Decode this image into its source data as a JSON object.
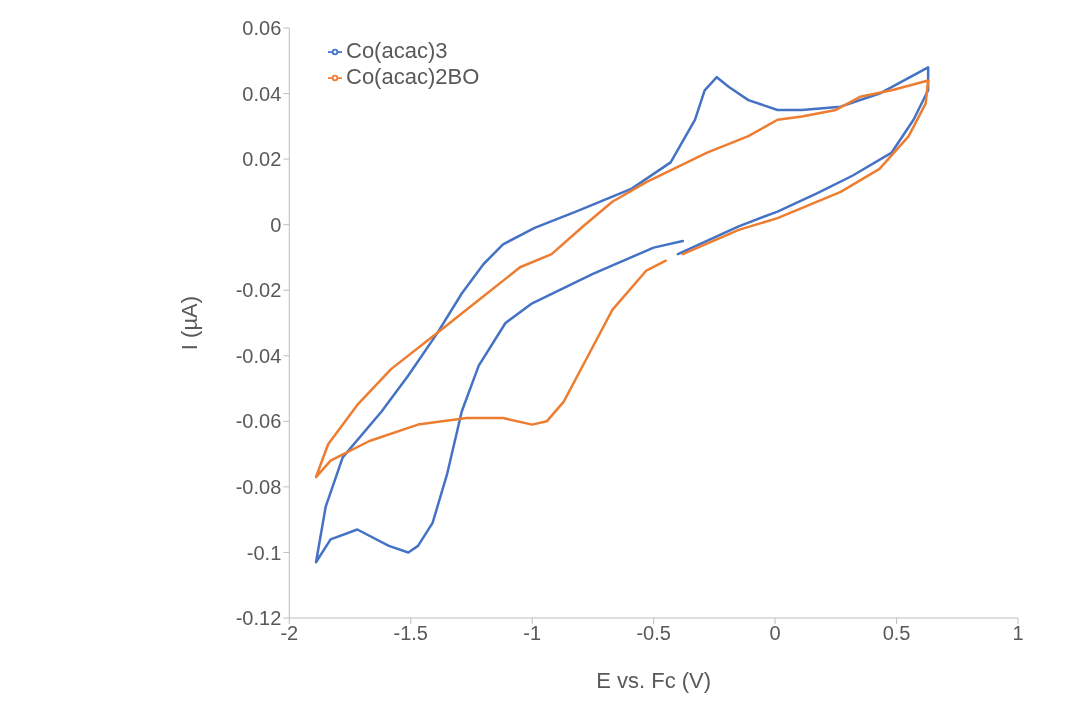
{
  "chart_data": {
    "type": "line",
    "xlabel": "E vs. Fc (V)",
    "ylabel": "I (µA)",
    "xlim": [
      -2,
      1
    ],
    "xticks": [
      -2,
      -1.5,
      -1,
      -0.5,
      0,
      0.5,
      1
    ],
    "ylim": [
      -0.12,
      0.06
    ],
    "yticks": [
      -0.12,
      -0.1,
      -0.08,
      -0.06,
      -0.04,
      -0.02,
      0,
      0.02,
      0.04,
      0.06
    ],
    "grid": false,
    "legend": "top left",
    "marker": "none",
    "line_style": "solid",
    "series": [
      {
        "name": "Co(acac)3",
        "color": "#4472c4",
        "x": [
          -0.38,
          -0.5,
          -0.75,
          -1.0,
          -1.11,
          -1.22,
          -1.29,
          -1.35,
          -1.41,
          -1.47,
          -1.51,
          -1.59,
          -1.72,
          -1.83,
          -1.89,
          -1.85,
          -1.78,
          -1.62,
          -1.51,
          -1.39,
          -1.29,
          -1.2,
          -1.12,
          -0.99,
          -0.82,
          -0.59,
          -0.43,
          -0.33,
          -0.29,
          -0.24,
          -0.19,
          -0.11,
          0.01,
          0.11,
          0.27,
          0.43,
          0.63,
          0.63,
          0.57,
          0.48,
          0.32,
          0.17,
          0.01,
          -0.15,
          -0.4
        ],
        "values": [
          -0.005,
          -0.007,
          -0.015,
          -0.024,
          -0.03,
          -0.043,
          -0.057,
          -0.076,
          -0.091,
          -0.098,
          -0.1,
          -0.098,
          -0.093,
          -0.096,
          -0.103,
          -0.086,
          -0.071,
          -0.057,
          -0.046,
          -0.033,
          -0.021,
          -0.012,
          -0.006,
          -0.001,
          0.004,
          0.011,
          0.019,
          0.032,
          0.041,
          0.045,
          0.042,
          0.038,
          0.035,
          0.035,
          0.036,
          0.04,
          0.048,
          0.041,
          0.032,
          0.022,
          0.015,
          0.0095,
          0.004,
          -0.0005,
          -0.009
        ]
      },
      {
        "name": "Co(acac)2BO",
        "color": "#ed7d31",
        "x": [
          -0.45,
          -0.53,
          -0.67,
          -0.77,
          -0.87,
          -0.94,
          -1.0,
          -1.12,
          -1.27,
          -1.47,
          -1.67,
          -1.83,
          -1.89,
          -1.84,
          -1.72,
          -1.58,
          -1.39,
          -1.22,
          -1.05,
          -0.92,
          -0.79,
          -0.67,
          -0.53,
          -0.28,
          -0.11,
          0.01,
          0.11,
          0.25,
          0.35,
          0.48,
          0.63,
          0.62,
          0.55,
          0.43,
          0.27,
          0.01,
          -0.15,
          -0.38
        ],
        "values": [
          -0.011,
          -0.014,
          -0.026,
          -0.04,
          -0.054,
          -0.06,
          -0.061,
          -0.059,
          -0.059,
          -0.061,
          -0.066,
          -0.072,
          -0.077,
          -0.067,
          -0.055,
          -0.044,
          -0.033,
          -0.023,
          -0.013,
          -0.009,
          -0.0005,
          0.007,
          0.013,
          0.022,
          0.027,
          0.032,
          0.033,
          0.035,
          0.039,
          0.041,
          0.044,
          0.037,
          0.027,
          0.017,
          0.01,
          0.002,
          -0.0016,
          -0.009
        ]
      }
    ]
  }
}
